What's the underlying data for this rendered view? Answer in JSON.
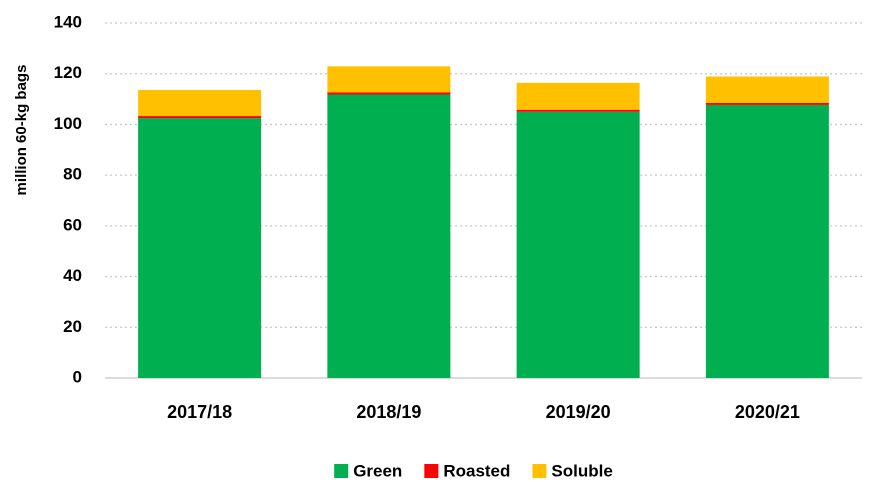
{
  "chart_data": {
    "type": "stacked-bar",
    "y_label": "million 60-kg bags",
    "categories": [
      "2017/18",
      "2018/19",
      "2019/20",
      "2020/21"
    ],
    "series": [
      {
        "name": "Green",
        "color": "#00b050",
        "values": [
          102.5,
          111.8,
          105.0,
          107.7
        ]
      },
      {
        "name": "Roasted",
        "color": "#ff0000",
        "values": [
          0.8,
          0.8,
          0.8,
          0.8
        ]
      },
      {
        "name": "Soluble",
        "color": "#ffc000",
        "values": [
          10.3,
          10.3,
          10.6,
          10.4
        ]
      }
    ],
    "ylim": [
      0,
      140
    ],
    "yticks": [
      0,
      20,
      40,
      60,
      80,
      100,
      120,
      140
    ],
    "grid": true,
    "legend": "bottom"
  }
}
